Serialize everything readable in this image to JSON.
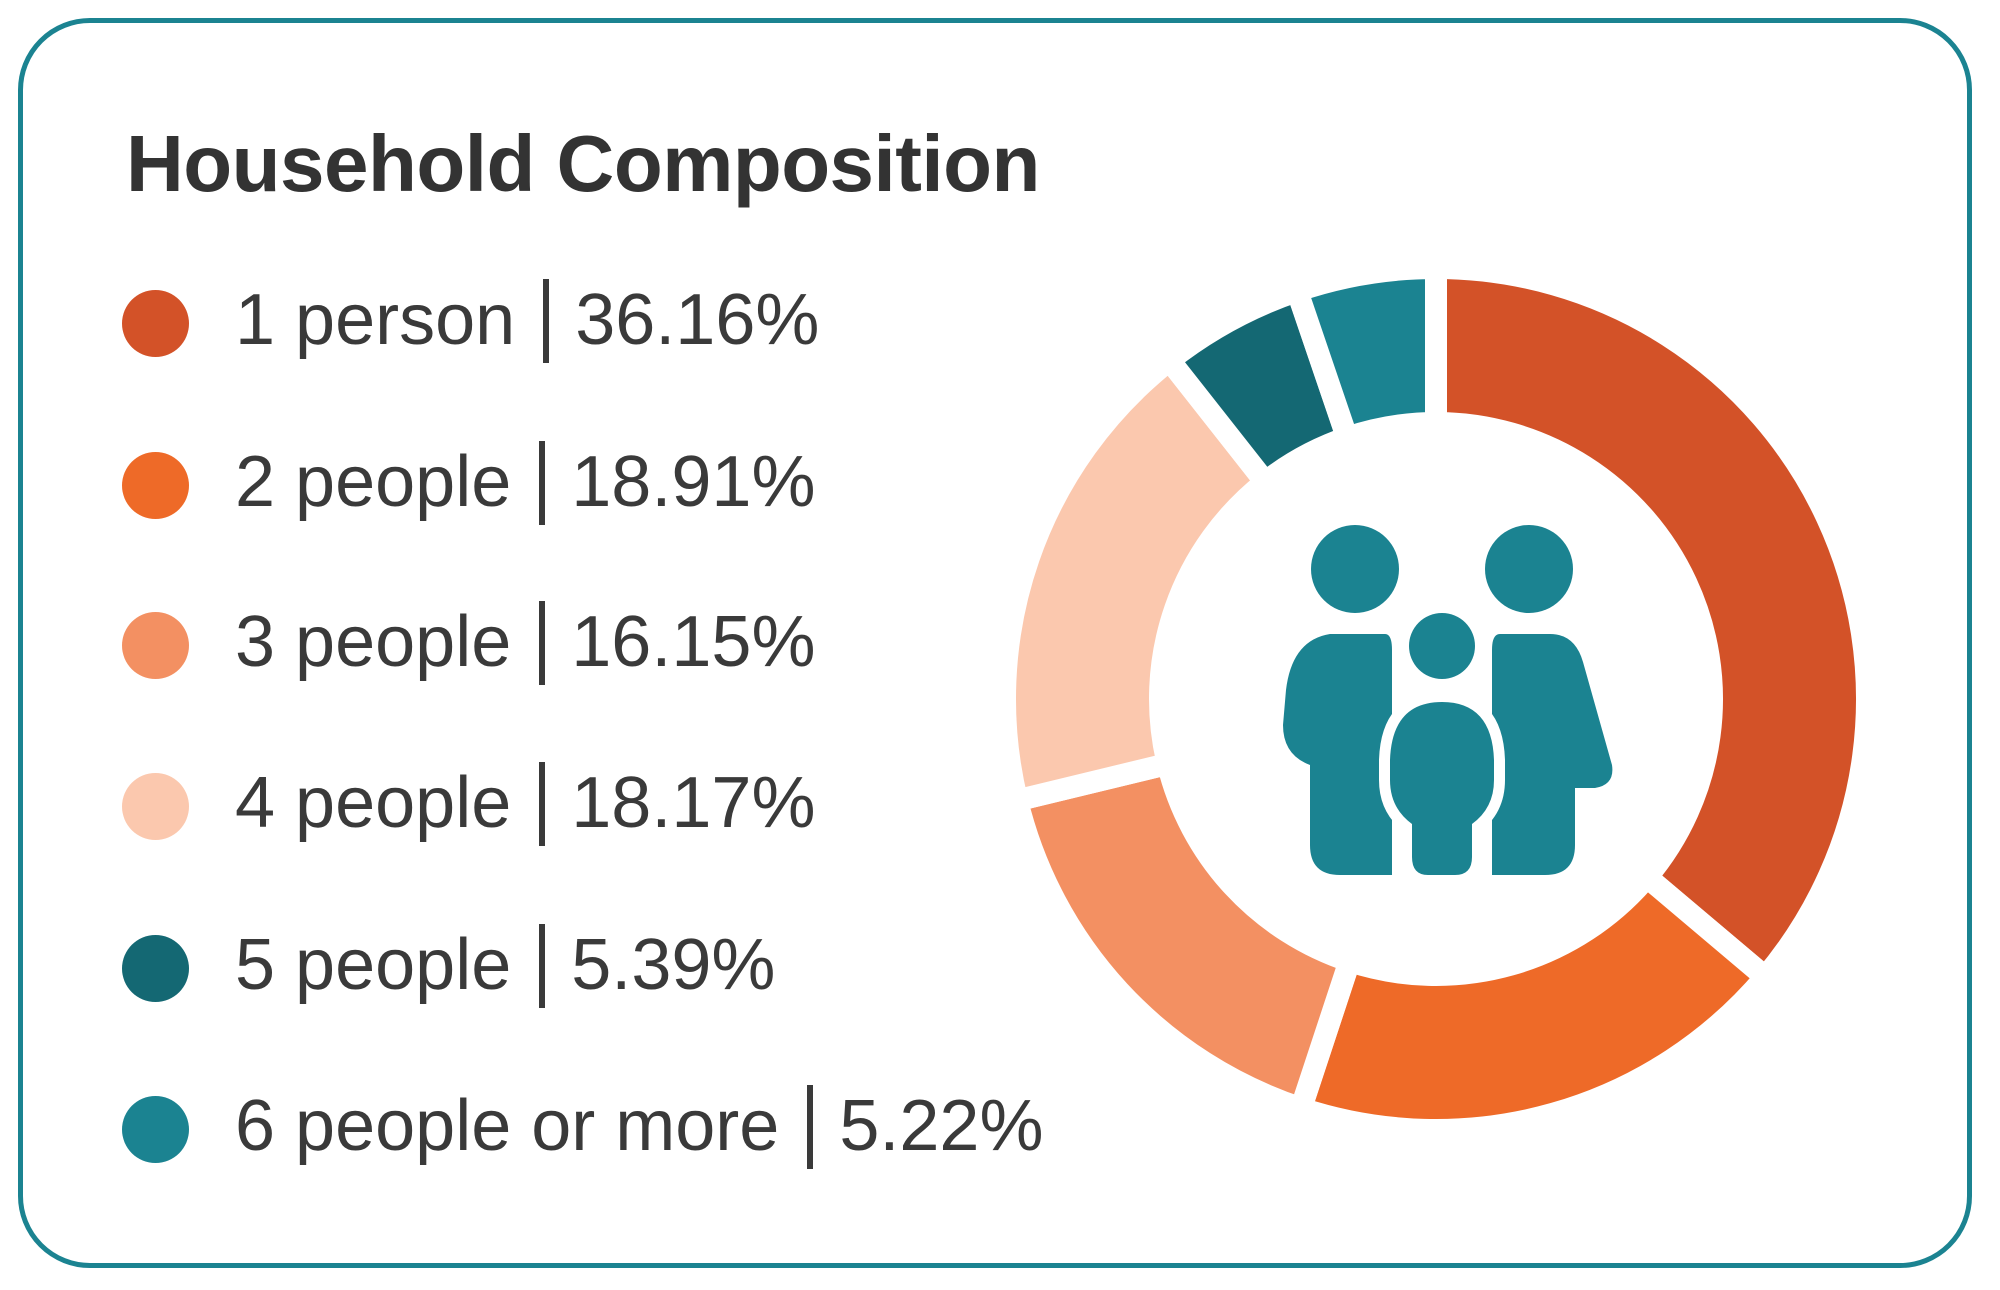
{
  "chart_data": {
    "type": "pie",
    "variant": "donut",
    "title": "Household Composition",
    "categories": [
      "1 person",
      "2 people",
      "3 people",
      "4 people",
      "5 people",
      "6 people or more"
    ],
    "values": [
      36.16,
      18.91,
      16.15,
      18.17,
      5.39,
      5.22
    ],
    "value_labels": [
      "36.16%",
      "18.91%",
      "16.15%",
      "18.17%",
      "5.39%",
      "5.22%"
    ],
    "colors": [
      "#D35228",
      "#EE6A28",
      "#F39062",
      "#FBC8AE",
      "#146873",
      "#1B8391"
    ],
    "legend": "left",
    "center_icon": "family-icon",
    "icon_color": "#1B8391",
    "border_color": "#1B8391"
  }
}
